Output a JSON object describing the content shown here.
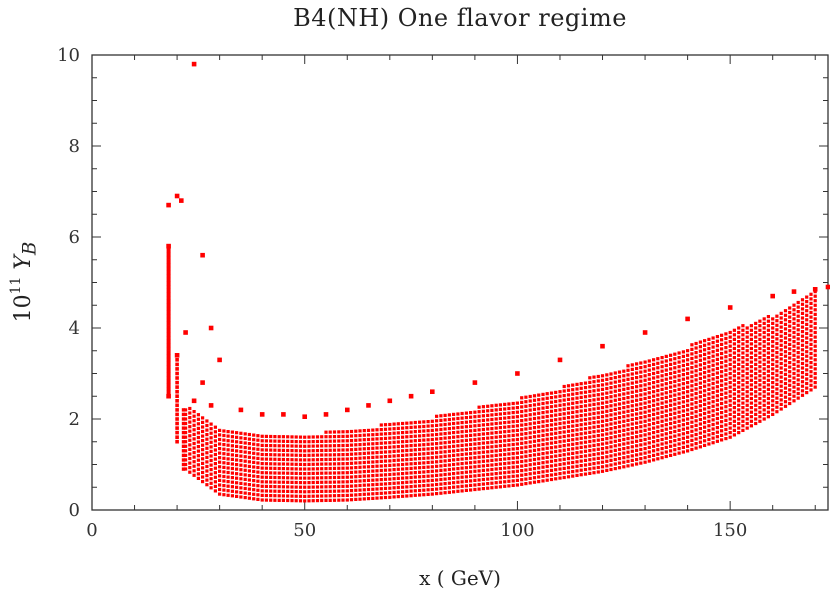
{
  "chart_data": {
    "type": "scatter",
    "title": "B4(NH) One flavor regime",
    "xlabel": "x ( GeV)",
    "ylabel_base": "10",
    "ylabel_exp": "11",
    "ylabel_var": "Y",
    "ylabel_sub": "B",
    "xlim": [
      0,
      173
    ],
    "ylim": [
      0,
      10
    ],
    "xticks": [
      0,
      50,
      100,
      150
    ],
    "yticks": [
      0,
      2,
      4,
      6,
      8,
      10
    ],
    "grid": false,
    "marker_color": "#ff0000",
    "series": [
      {
        "x": [
          18.0,
          18.0,
          18.0,
          20.0,
          21.0,
          24.0,
          26.0,
          28.0,
          30.0,
          20.0,
          22.0,
          24.0,
          26.0,
          28.0,
          35,
          40,
          45,
          50,
          55,
          60,
          65,
          70,
          75,
          80,
          90,
          100,
          110,
          120,
          130,
          140,
          150,
          160,
          165,
          170,
          173
        ],
        "y": [
          6.7,
          5.8,
          2.5,
          6.9,
          6.8,
          9.8,
          5.6,
          4.0,
          3.3,
          3.4,
          3.9,
          2.4,
          2.8,
          2.3,
          2.2,
          2.1,
          2.1,
          2.05,
          2.1,
          2.2,
          2.3,
          2.4,
          2.5,
          2.6,
          2.8,
          3.0,
          3.3,
          3.6,
          3.9,
          4.2,
          4.45,
          4.7,
          4.8,
          4.85,
          4.9
        ]
      }
    ],
    "bands": [
      {
        "x": [
          22,
          30,
          40,
          50,
          60,
          70,
          80,
          90,
          100,
          110,
          120,
          130,
          140,
          150,
          160,
          170
        ],
        "ymin": [
          0.9,
          0.35,
          0.22,
          0.2,
          0.22,
          0.28,
          0.35,
          0.45,
          0.55,
          0.7,
          0.85,
          1.05,
          1.3,
          1.6,
          2.1,
          2.7
        ],
        "ymax": [
          2.3,
          1.8,
          1.7,
          1.68,
          1.75,
          1.9,
          2.05,
          2.25,
          2.45,
          2.7,
          3.0,
          3.3,
          3.6,
          3.95,
          4.3,
          4.8
        ]
      }
    ]
  }
}
